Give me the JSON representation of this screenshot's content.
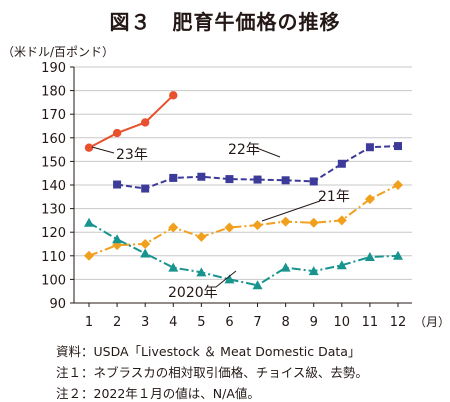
{
  "title": "図３　肥育牛価格の推移",
  "notes": {
    "source": "資料：USDA「Livestock ＆ Meat Domestic Data」",
    "note1": "注１：ネブラスカの相対取引価格、チョイス級、去勢。",
    "note2": "注２：2022年１月の値は、N/A値。"
  },
  "chart_data": {
    "type": "line",
    "title": "図３　肥育牛価格の推移",
    "ylabel": "（米ドル/百ポンド）",
    "xlabel": "（月）",
    "x": [
      1,
      2,
      3,
      4,
      5,
      6,
      7,
      8,
      9,
      10,
      11,
      12
    ],
    "xlim": [
      1,
      12
    ],
    "ylim": [
      90,
      190
    ],
    "yticks": [
      90,
      100,
      110,
      120,
      130,
      140,
      150,
      160,
      170,
      180,
      190
    ],
    "grid": "horizontal",
    "legend": "inline labels",
    "series": [
      {
        "name": "23年",
        "color": "#e8502e",
        "dash": "solid",
        "marker": "circle",
        "values": [
          155.8,
          162.0,
          166.5,
          178.0,
          null,
          null,
          null,
          null,
          null,
          null,
          null,
          null
        ]
      },
      {
        "name": "22年",
        "color": "#3d3b99",
        "dash": "dashed",
        "marker": "square",
        "values": [
          null,
          140.2,
          138.5,
          143.0,
          143.5,
          142.5,
          142.3,
          142.0,
          141.5,
          149.0,
          156.0,
          156.5
        ]
      },
      {
        "name": "21年",
        "color": "#f0a01c",
        "dash": "dashdot",
        "marker": "diamond",
        "values": [
          110.0,
          114.5,
          115.0,
          122.0,
          118.0,
          122.0,
          123.0,
          124.5,
          124.0,
          125.0,
          134.0,
          140.0
        ]
      },
      {
        "name": "2020年",
        "color": "#17948e",
        "dash": "dashdot",
        "marker": "triangle",
        "values": [
          124.0,
          117.0,
          111.0,
          105.0,
          103.0,
          100.0,
          97.5,
          105.0,
          103.5,
          106.0,
          109.5,
          110.0
        ]
      }
    ]
  }
}
